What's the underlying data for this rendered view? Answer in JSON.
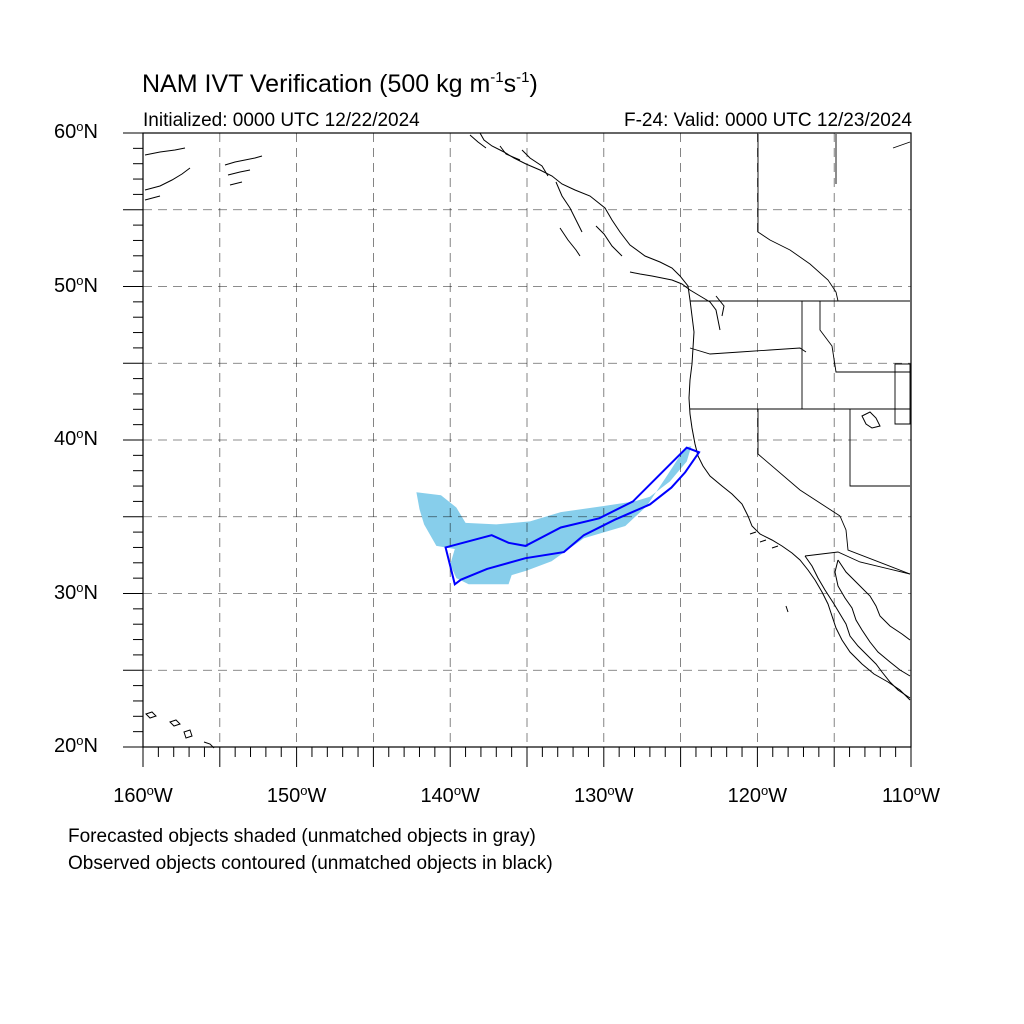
{
  "title": {
    "text": "NAM IVT Verification (500 kg m",
    "exp1": "-1",
    "mid": "s",
    "exp2": "-1",
    "end": ")"
  },
  "initialized": "Initialized: 0000 UTC 12/22/2024",
  "valid": "F-24: Valid: 0000 UTC 12/23/2024",
  "notes": {
    "forecast": "Forecasted objects shaded (unmatched objects in gray)",
    "observed": "Observed objects contoured (unmatched objects in black)"
  },
  "map": {
    "extent": {
      "lon_min": -160,
      "lon_max": -110,
      "lat_min": 20,
      "lat_max": 60
    },
    "lat_labels": [
      {
        "value": 60,
        "text": "60",
        "suffix": "N"
      },
      {
        "value": 50,
        "text": "50",
        "suffix": "N"
      },
      {
        "value": 40,
        "text": "40",
        "suffix": "N"
      },
      {
        "value": 30,
        "text": "30",
        "suffix": "N"
      },
      {
        "value": 20,
        "text": "20",
        "suffix": "N"
      }
    ],
    "lon_labels": [
      {
        "value": -160,
        "text": "160",
        "suffix": "W"
      },
      {
        "value": -150,
        "text": "150",
        "suffix": "W"
      },
      {
        "value": -140,
        "text": "140",
        "suffix": "W"
      },
      {
        "value": -130,
        "text": "130",
        "suffix": "W"
      },
      {
        "value": -120,
        "text": "120",
        "suffix": "W"
      },
      {
        "value": -110,
        "text": "110",
        "suffix": "W"
      }
    ],
    "colors": {
      "forecast_fill": "#87ceeb",
      "observed_contour": "#0000ff",
      "coast": "#000000",
      "grid": "#000000"
    },
    "forecast_object": [
      [
        -142.2,
        36.6
      ],
      [
        -140.6,
        36.4
      ],
      [
        -139.6,
        35.6
      ],
      [
        -139.0,
        34.6
      ],
      [
        -137.0,
        34.5
      ],
      [
        -134.8,
        34.7
      ],
      [
        -132.8,
        35.3
      ],
      [
        -130.0,
        35.7
      ],
      [
        -128.0,
        36.0
      ],
      [
        -127.0,
        36.3
      ],
      [
        -125.7,
        37.3
      ],
      [
        -124.6,
        38.6
      ],
      [
        -124.3,
        39.6
      ],
      [
        -124.7,
        39.5
      ],
      [
        -126.0,
        37.5
      ],
      [
        -127.2,
        35.7
      ],
      [
        -128.6,
        34.4
      ],
      [
        -131.3,
        33.6
      ],
      [
        -133.4,
        32.1
      ],
      [
        -135.0,
        31.5
      ],
      [
        -136.0,
        31.2
      ],
      [
        -136.2,
        30.6
      ],
      [
        -138.8,
        30.6
      ],
      [
        -139.6,
        31.0
      ],
      [
        -140.0,
        31.9
      ],
      [
        -139.7,
        32.9
      ],
      [
        -140.9,
        33.1
      ],
      [
        -141.7,
        34.5
      ],
      [
        -142.0,
        35.5
      ]
    ],
    "observed_object": [
      [
        -140.3,
        33.0
      ],
      [
        -137.3,
        33.8
      ],
      [
        -136.2,
        33.3
      ],
      [
        -135.1,
        33.1
      ],
      [
        -132.8,
        34.3
      ],
      [
        -130.3,
        34.9
      ],
      [
        -128.1,
        36.0
      ],
      [
        -125.8,
        38.3
      ],
      [
        -124.6,
        39.5
      ],
      [
        -123.8,
        39.2
      ],
      [
        -124.7,
        37.9
      ],
      [
        -125.6,
        36.9
      ],
      [
        -127.0,
        35.8
      ],
      [
        -129.3,
        34.8
      ],
      [
        -131.3,
        33.8
      ],
      [
        -132.6,
        32.7
      ],
      [
        -135.1,
        32.3
      ],
      [
        -137.6,
        31.6
      ],
      [
        -139.3,
        30.9
      ],
      [
        -139.7,
        30.6
      ]
    ]
  }
}
